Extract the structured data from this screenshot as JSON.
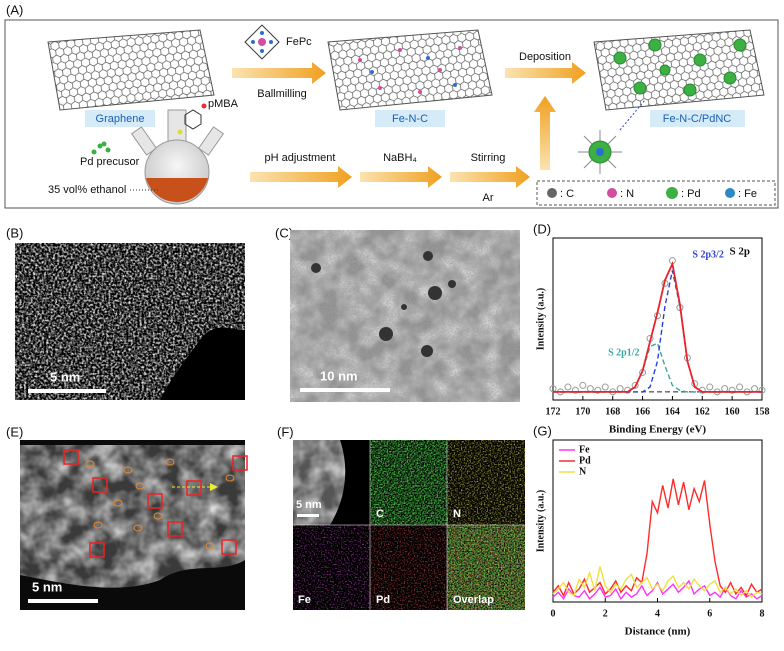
{
  "scheme": {
    "label": "(A)",
    "graphene": "Graphene",
    "fepc": "FePc",
    "ballmilling": "Ballmilling",
    "fenc": "Fe-N-C",
    "deposition": "Deposition",
    "product": "Fe-N-C/PdNC",
    "pmba": "pMBA",
    "pd_precursor": "Pd precusor",
    "ethanol": "35 vol% ethanol",
    "ph": "pH adjustment",
    "nabh4": "NaBH₄",
    "stirring": "Stirring",
    "ar": "Ar",
    "legend": [
      ": C",
      ": N",
      ": Pd",
      ": Fe"
    ]
  },
  "image_b": {
    "label": "(B)",
    "scale": "5 nm"
  },
  "image_c": {
    "label": "(C)",
    "scale": "10 nm"
  },
  "image_e": {
    "label": "(E)",
    "scale": "5 nm"
  },
  "mapping_f": {
    "label": "(F)",
    "scale": "5 nm",
    "tiles": [
      "C",
      "N",
      "Fe",
      "Pd",
      "Overlap"
    ]
  },
  "chart_data": [
    {
      "type": "line",
      "panel_label": "(D)",
      "title": "S 2p",
      "xlabel": "Binding Energy (eV)",
      "ylabel": "Intensity (a.u.)",
      "x": [
        172,
        171.5,
        171,
        170.5,
        170,
        169.5,
        169,
        168.5,
        168,
        167.5,
        167,
        166.5,
        166,
        165.5,
        165,
        164.5,
        164,
        163.5,
        163,
        162.5,
        162,
        161.5,
        161,
        160.5,
        160,
        159.5,
        159,
        158.5,
        158
      ],
      "xlim": [
        172,
        158
      ],
      "xticks": [
        172,
        170,
        168,
        166,
        164,
        162,
        160,
        158
      ],
      "ylim": [
        0,
        100
      ],
      "baseline": 5,
      "raw": {
        "color": "#9a9a9a",
        "values": [
          7,
          5,
          8,
          6,
          9,
          7,
          6,
          8,
          5,
          7,
          6,
          9,
          17,
          38,
          52,
          72,
          86,
          57,
          26,
          10,
          6,
          8,
          5,
          7,
          6,
          8,
          5,
          7,
          6
        ]
      },
      "fit": {
        "color": "#e8242a",
        "values": [
          5,
          5,
          5,
          5,
          5,
          5,
          5,
          5,
          5,
          5,
          5,
          8,
          18,
          36,
          54,
          74,
          84,
          59,
          24,
          8,
          5,
          5,
          5,
          5,
          5,
          5,
          5,
          5,
          5
        ]
      },
      "series": [
        {
          "name": "S 2p1/2",
          "color": "#3aa7a0",
          "dashed": true,
          "values": [
            5,
            5,
            5,
            5,
            5,
            5,
            5,
            5,
            5,
            5,
            5,
            8,
            18,
            33,
            35,
            21,
            9,
            6,
            5,
            5,
            5,
            5,
            5,
            5,
            5,
            5,
            5,
            5,
            5
          ]
        },
        {
          "name": "S 2p3/2",
          "color": "#2b3fd6",
          "dashed": true,
          "values": [
            5,
            5,
            5,
            5,
            5,
            5,
            5,
            5,
            5,
            5,
            5,
            5,
            5,
            8,
            24,
            58,
            80,
            58,
            24,
            8,
            5,
            5,
            5,
            5,
            5,
            5,
            5,
            5,
            5
          ]
        }
      ]
    },
    {
      "type": "line",
      "panel_label": "(G)",
      "xlabel": "Distance (nm)",
      "ylabel": "Intensity (a.u.)",
      "legend": "upper left",
      "x": [
        0,
        0.2,
        0.4,
        0.6,
        0.8,
        1,
        1.2,
        1.4,
        1.6,
        1.8,
        2,
        2.2,
        2.4,
        2.6,
        2.8,
        3,
        3.2,
        3.4,
        3.6,
        3.8,
        4,
        4.2,
        4.4,
        4.6,
        4.8,
        5,
        5.2,
        5.4,
        5.6,
        5.8,
        6,
        6.2,
        6.4,
        6.6,
        6.8,
        7,
        7.2,
        7.4,
        7.6,
        7.8,
        8
      ],
      "xlim": [
        0,
        8
      ],
      "xticks": [
        0,
        2,
        4,
        6,
        8
      ],
      "ylim": [
        0,
        100
      ],
      "series": [
        {
          "name": "Fe",
          "color": "#ff33ff",
          "values": [
            3,
            6,
            2,
            8,
            4,
            3,
            7,
            2,
            5,
            9,
            3,
            4,
            8,
            2,
            6,
            3,
            5,
            10,
            4,
            7,
            12,
            5,
            8,
            11,
            6,
            9,
            13,
            5,
            8,
            10,
            4,
            6,
            3,
            9,
            4,
            2,
            7,
            3,
            5,
            2,
            4
          ]
        },
        {
          "name": "Pd",
          "color": "#ff2a2a",
          "values": [
            6,
            10,
            4,
            12,
            5,
            8,
            14,
            6,
            9,
            12,
            5,
            8,
            13,
            6,
            10,
            7,
            15,
            12,
            30,
            62,
            55,
            72,
            58,
            76,
            60,
            74,
            57,
            70,
            62,
            75,
            48,
            25,
            10,
            6,
            12,
            5,
            9,
            4,
            11,
            6,
            8
          ]
        },
        {
          "name": "N",
          "color": "#f0e040",
          "values": [
            5,
            8,
            12,
            6,
            4,
            14,
            9,
            18,
            7,
            22,
            10,
            6,
            11,
            8,
            14,
            17,
            9,
            12,
            15,
            8,
            11,
            7,
            13,
            16,
            9,
            12,
            8,
            14,
            10,
            7,
            11,
            13,
            6,
            9,
            5,
            8,
            4,
            7,
            3,
            6,
            5
          ]
        }
      ]
    }
  ]
}
